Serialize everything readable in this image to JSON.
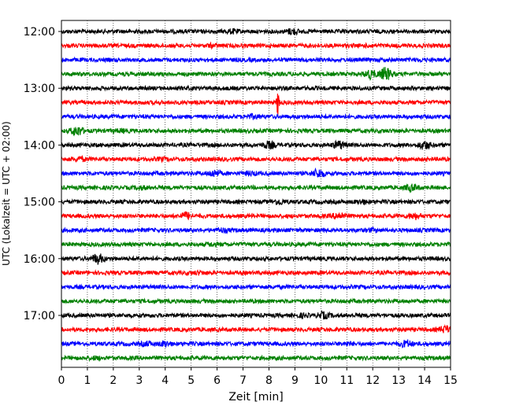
{
  "chart_data": {
    "type": "line",
    "title": "",
    "xlabel": "Zeit  [min]",
    "ylabel": "UTC (Lokalzeit = UTC + 02:00)",
    "xlim": [
      0,
      15
    ],
    "x_ticks": [
      "0",
      "1",
      "2",
      "3",
      "4",
      "5",
      "6",
      "7",
      "8",
      "9",
      "10",
      "11",
      "12",
      "13",
      "14",
      "15"
    ],
    "y_ticks": [
      "12:00",
      "13:00",
      "14:00",
      "15:00",
      "16:00",
      "17:00"
    ],
    "grid": {
      "x": true,
      "y": false,
      "style": "dotted"
    },
    "trace_interval_minutes": 15,
    "trace_colors": [
      "#000000",
      "#ff0000",
      "#0000ff",
      "#008000"
    ],
    "traces": [
      {
        "start": "12:00",
        "events": [
          {
            "t": 6.6,
            "amp": 1.3
          },
          {
            "t": 8.9,
            "amp": 1.5
          }
        ]
      },
      {
        "start": "12:15",
        "events": [
          {
            "t": 5.8,
            "amp": 1.2
          },
          {
            "t": 11.9,
            "amp": 1.1
          }
        ]
      },
      {
        "start": "12:30",
        "events": [
          {
            "t": 6.0,
            "amp": 1.0
          },
          {
            "t": 13.8,
            "amp": 1.1
          }
        ]
      },
      {
        "start": "12:45",
        "events": [
          {
            "t": 11.9,
            "amp": 1.8
          },
          {
            "t": 12.5,
            "amp": 2.2
          }
        ]
      },
      {
        "start": "13:00",
        "events": [
          {
            "t": 8.8,
            "amp": 1.0
          }
        ]
      },
      {
        "start": "13:15",
        "events": [
          {
            "t": 8.35,
            "amp": 4.0
          }
        ]
      },
      {
        "start": "13:30",
        "events": [
          {
            "t": 7.4,
            "amp": 1.3
          }
        ]
      },
      {
        "start": "13:45",
        "events": [
          {
            "t": 0.6,
            "amp": 1.9
          },
          {
            "t": 2.3,
            "amp": 1.2
          }
        ]
      },
      {
        "start": "14:00",
        "events": [
          {
            "t": 8.0,
            "amp": 1.6
          },
          {
            "t": 10.7,
            "amp": 1.7
          },
          {
            "t": 14.0,
            "amp": 1.7
          }
        ]
      },
      {
        "start": "14:15",
        "events": [
          {
            "t": 0.7,
            "amp": 1.3
          },
          {
            "t": 3.9,
            "amp": 1.2
          }
        ]
      },
      {
        "start": "14:30",
        "events": [
          {
            "t": 5.9,
            "amp": 1.6
          },
          {
            "t": 9.9,
            "amp": 1.8
          },
          {
            "t": 7.3,
            "amp": 1.3
          }
        ]
      },
      {
        "start": "14:45",
        "events": [
          {
            "t": 3.1,
            "amp": 1.2
          },
          {
            "t": 13.5,
            "amp": 1.6
          }
        ]
      },
      {
        "start": "15:00",
        "events": [
          {
            "t": 8.4,
            "amp": 1.4
          },
          {
            "t": 11.6,
            "amp": 1.3
          }
        ]
      },
      {
        "start": "15:15",
        "events": [
          {
            "t": 4.8,
            "amp": 1.6
          },
          {
            "t": 10.7,
            "amp": 1.6
          },
          {
            "t": 13.6,
            "amp": 1.5
          }
        ]
      },
      {
        "start": "15:30",
        "events": [
          {
            "t": 6.2,
            "amp": 1.3
          },
          {
            "t": 12.0,
            "amp": 1.2
          }
        ]
      },
      {
        "start": "15:45",
        "events": [
          {
            "t": 5.8,
            "amp": 1.2
          },
          {
            "t": 13.0,
            "amp": 1.0
          }
        ]
      },
      {
        "start": "16:00",
        "events": [
          {
            "t": 1.4,
            "amp": 1.9
          }
        ]
      },
      {
        "start": "16:15",
        "events": [
          {
            "t": 5.3,
            "amp": 1.2
          },
          {
            "t": 7.6,
            "amp": 1.0
          }
        ]
      },
      {
        "start": "16:30",
        "events": [
          {
            "t": 3.7,
            "amp": 1.0
          },
          {
            "t": 9.6,
            "amp": 1.0
          }
        ]
      },
      {
        "start": "16:45",
        "events": [
          {
            "t": 6.8,
            "amp": 0.9
          }
        ]
      },
      {
        "start": "17:00",
        "events": [
          {
            "t": 9.3,
            "amp": 1.2
          },
          {
            "t": 10.1,
            "amp": 1.5
          }
        ]
      },
      {
        "start": "17:15",
        "events": [
          {
            "t": 3.0,
            "amp": 1.0
          },
          {
            "t": 14.8,
            "amp": 1.6
          }
        ]
      },
      {
        "start": "17:30",
        "events": [
          {
            "t": 3.3,
            "amp": 1.3
          },
          {
            "t": 4.0,
            "amp": 1.4
          },
          {
            "t": 11.0,
            "amp": 1.2
          },
          {
            "t": 13.3,
            "amp": 1.6
          }
        ]
      },
      {
        "start": "17:45",
        "events": [
          {
            "t": 1.3,
            "amp": 1.2
          },
          {
            "t": 9.6,
            "amp": 1.0
          }
        ]
      }
    ]
  }
}
